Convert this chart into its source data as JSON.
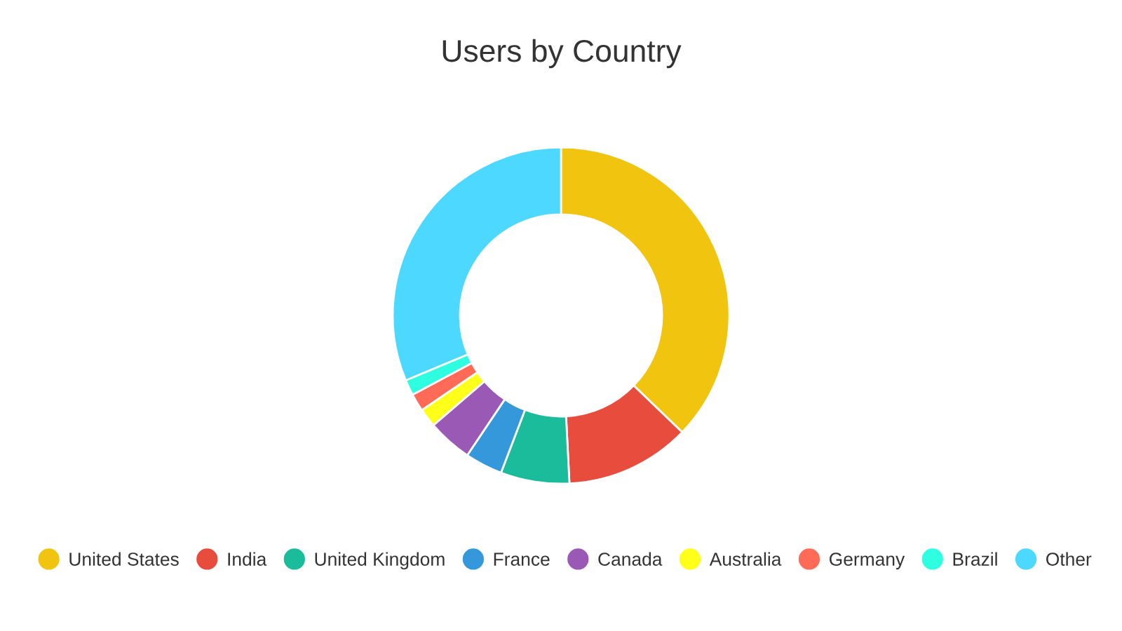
{
  "chart_data": {
    "type": "donut",
    "title": "Users by Country",
    "categories": [
      "United States",
      "India",
      "United Kingdom",
      "France",
      "Canada",
      "Australia",
      "Germany",
      "Brazil",
      "Other"
    ],
    "values": [
      37.2,
      12,
      6.6,
      3.6,
      4.3,
      1.8,
      1.7,
      1.5,
      31.3
    ],
    "colors": [
      "#f1c40f",
      "#e74c3c",
      "#1abc9c",
      "#3498db",
      "#9b59b6",
      "#ffff1a",
      "#ff6b57",
      "#2effe0",
      "#4dd9ff"
    ],
    "legend": "bottom"
  }
}
